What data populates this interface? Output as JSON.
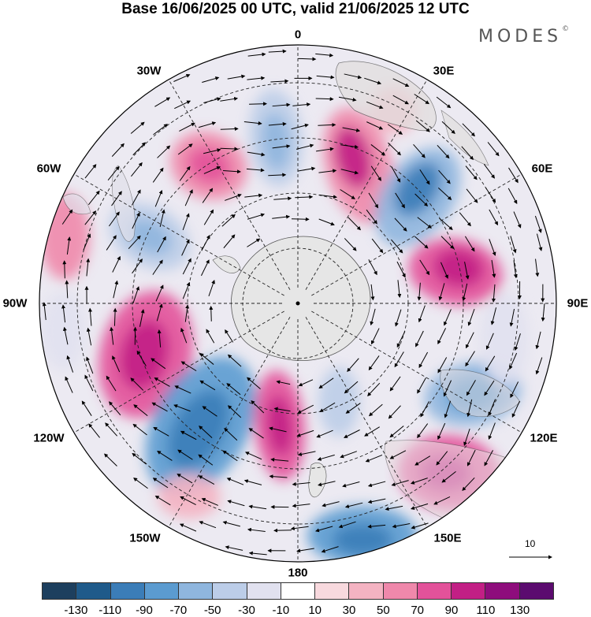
{
  "title": "Base 16/06/2025 00 UTC, valid 21/06/2025 12 UTC",
  "brand": "MODES",
  "brand_mark": "©",
  "longitude_labels": [
    "0",
    "30E",
    "60E",
    "90E",
    "120E",
    "150E",
    "180",
    "150W",
    "120W",
    "90W",
    "60W",
    "30W"
  ],
  "reference_vector": "10",
  "colorbar": {
    "colors": [
      "#1d3f5e",
      "#1f5a8a",
      "#3b7db8",
      "#5b9bd0",
      "#8fb6de",
      "#bccde8",
      "#e1e1ef",
      "#ffffff",
      "#f8d9de",
      "#f4b3c2",
      "#ef88ab",
      "#e3529a",
      "#c21f85",
      "#8e0d7c",
      "#5b0b6f"
    ],
    "ticks": [
      "-130",
      "-110",
      "-90",
      "-70",
      "-50",
      "-30",
      "-10",
      "10",
      "30",
      "50",
      "70",
      "90",
      "110",
      "130"
    ]
  }
}
